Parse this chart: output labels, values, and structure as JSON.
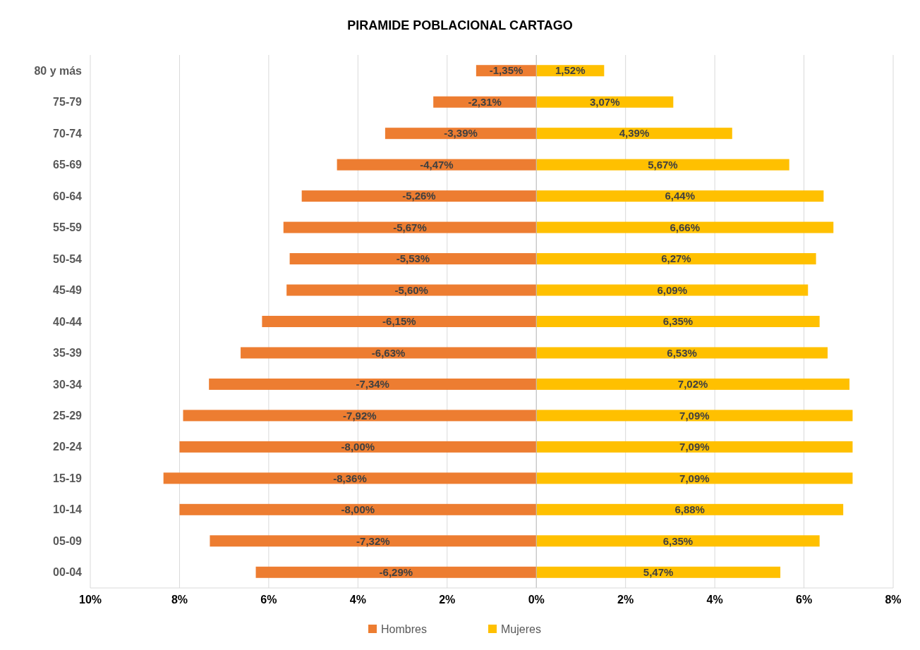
{
  "chart_data": {
    "type": "bar",
    "orientation": "horizontal",
    "stacked": true,
    "title": "PIRAMIDE POBLACIONAL CARTAGO",
    "categories": [
      "80 y más",
      "75-79",
      "70-74",
      "65-69",
      "60-64",
      "55-59",
      "50-54",
      "45-49",
      "40-44",
      "35-39",
      "30-34",
      "25-29",
      "20-24",
      "15-19",
      "10-14",
      "05-09",
      "00-04"
    ],
    "series": [
      {
        "name": "Hombres",
        "color": "#ed7d31",
        "values": [
          -1.35,
          -2.31,
          -3.39,
          -4.47,
          -5.26,
          -5.67,
          -5.53,
          -5.6,
          -6.15,
          -6.63,
          -7.34,
          -7.92,
          -8.0,
          -8.36,
          -8.0,
          -7.32,
          -6.29
        ],
        "value_labels": [
          "-1,35%",
          "-2,31%",
          "-3,39%",
          "-4,47%",
          "-5,26%",
          "-5,67%",
          "-5,53%",
          "-5,60%",
          "-6,15%",
          "-6,63%",
          "-7,34%",
          "-7,92%",
          "-8,00%",
          "-8,36%",
          "-8,00%",
          "-7,32%",
          "-6,29%"
        ]
      },
      {
        "name": "Mujeres",
        "color": "#ffc000",
        "values": [
          1.52,
          3.07,
          4.39,
          5.67,
          6.44,
          6.66,
          6.27,
          6.09,
          6.35,
          6.53,
          7.02,
          7.09,
          7.09,
          7.09,
          6.88,
          6.35,
          5.47
        ],
        "value_labels": [
          "1,52%",
          "3,07%",
          "4,39%",
          "5,67%",
          "6,44%",
          "6,66%",
          "6,27%",
          "6,09%",
          "6,35%",
          "6,53%",
          "7,02%",
          "7,09%",
          "7,09%",
          "7,09%",
          "6,88%",
          "6,35%",
          "5,47%"
        ]
      }
    ],
    "xlim": [
      -10,
      8
    ],
    "xticks": [
      {
        "value": -10,
        "label": "10%"
      },
      {
        "value": -8,
        "label": "8%"
      },
      {
        "value": -6,
        "label": "6%"
      },
      {
        "value": -4,
        "label": "4%"
      },
      {
        "value": -2,
        "label": "2%"
      },
      {
        "value": 0,
        "label": "0%"
      },
      {
        "value": 2,
        "label": "2%"
      },
      {
        "value": 4,
        "label": "4%"
      },
      {
        "value": 6,
        "label": "6%"
      },
      {
        "value": 8,
        "label": "8%"
      }
    ],
    "grid": "x",
    "legend": "bottom"
  }
}
